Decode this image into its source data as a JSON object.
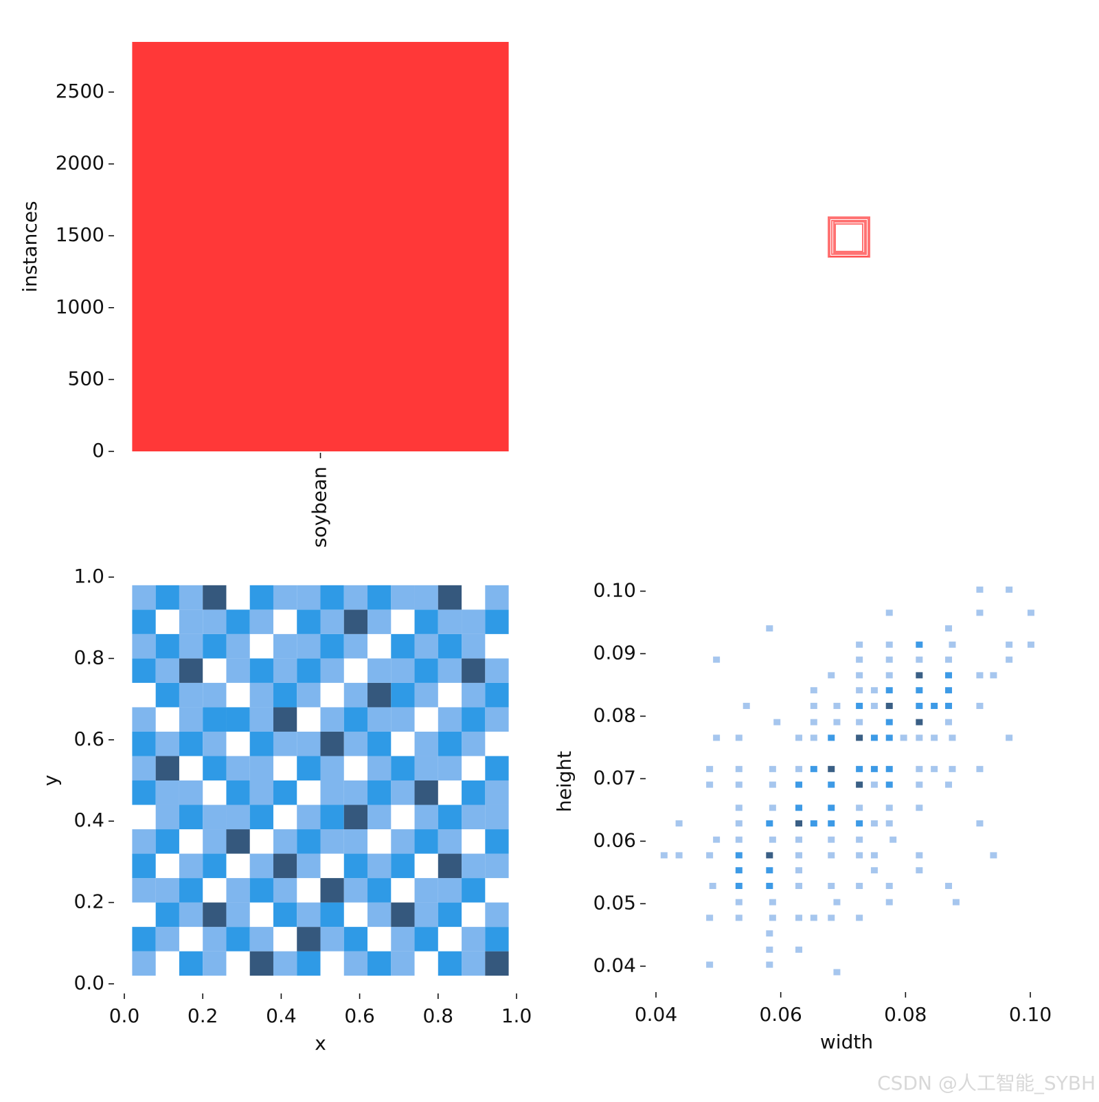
{
  "chart_data": [
    {
      "type": "bar",
      "ylabel": "instances",
      "categories": [
        "soybean"
      ],
      "values": [
        2849
      ],
      "color": "#ff3838",
      "ylim": [
        0,
        2849
      ],
      "yticks": [
        0,
        500,
        1000,
        1500,
        2000,
        2500
      ]
    },
    {
      "type": "hist2d",
      "xlabel": "x",
      "ylabel": "y",
      "xlim": [
        0,
        1
      ],
      "ylim": [
        0,
        1
      ],
      "xticks": [
        {
          "value": 0,
          "label": "0.0"
        },
        0.2,
        0.4,
        0.6,
        0.8,
        {
          "value": 1,
          "label": "1.0"
        }
      ],
      "yticks": [
        {
          "value": 0,
          "label": "0.0"
        },
        0.2,
        0.4,
        0.6,
        0.8,
        {
          "value": 1,
          "label": "1.0"
        }
      ],
      "colors": [
        "#7fb6ee",
        "#2f9ae6",
        "#35587d"
      ],
      "xbins": [
        0.02,
        0.08,
        0.14,
        0.2,
        0.26,
        0.32,
        0.38,
        0.44,
        0.5,
        0.56,
        0.62,
        0.68,
        0.74,
        0.8,
        0.86,
        0.92,
        0.98
      ],
      "ybins": [
        0.02,
        0.08,
        0.14,
        0.2,
        0.26,
        0.32,
        0.38,
        0.44,
        0.5,
        0.56,
        0.62,
        0.68,
        0.74,
        0.8,
        0.86,
        0.92,
        0.98
      ],
      "counts": [
        [
          1,
          0,
          2,
          1,
          0,
          3,
          1,
          2,
          0,
          1,
          2,
          1,
          0,
          2,
          1,
          3
        ],
        [
          2,
          1,
          0,
          1,
          2,
          1,
          0,
          3,
          1,
          2,
          0,
          1,
          2,
          0,
          1,
          2
        ],
        [
          0,
          2,
          1,
          3,
          1,
          0,
          2,
          1,
          2,
          0,
          1,
          3,
          1,
          2,
          0,
          1
        ],
        [
          1,
          1,
          2,
          0,
          1,
          2,
          1,
          0,
          3,
          1,
          2,
          0,
          1,
          1,
          2,
          0
        ],
        [
          2,
          0,
          1,
          2,
          0,
          1,
          3,
          1,
          0,
          2,
          1,
          2,
          0,
          3,
          1,
          1
        ],
        [
          1,
          2,
          0,
          1,
          3,
          0,
          1,
          2,
          1,
          1,
          0,
          1,
          2,
          1,
          0,
          2
        ],
        [
          0,
          1,
          2,
          1,
          1,
          2,
          0,
          1,
          2,
          3,
          1,
          0,
          1,
          2,
          1,
          1
        ],
        [
          2,
          1,
          1,
          0,
          2,
          1,
          2,
          0,
          1,
          1,
          2,
          1,
          3,
          0,
          2,
          1
        ],
        [
          1,
          3,
          0,
          2,
          1,
          1,
          0,
          2,
          1,
          0,
          1,
          2,
          1,
          1,
          0,
          2
        ],
        [
          2,
          1,
          2,
          1,
          0,
          2,
          1,
          1,
          3,
          1,
          2,
          0,
          1,
          2,
          1,
          0
        ],
        [
          1,
          0,
          1,
          2,
          2,
          1,
          3,
          0,
          1,
          2,
          1,
          1,
          0,
          1,
          2,
          1
        ],
        [
          0,
          2,
          1,
          1,
          0,
          1,
          2,
          1,
          0,
          1,
          3,
          2,
          1,
          0,
          1,
          2
        ],
        [
          2,
          1,
          3,
          0,
          1,
          2,
          1,
          2,
          1,
          0,
          1,
          1,
          2,
          1,
          3,
          1
        ],
        [
          1,
          2,
          1,
          2,
          1,
          0,
          1,
          1,
          2,
          1,
          0,
          2,
          1,
          2,
          1,
          0
        ],
        [
          2,
          0,
          1,
          1,
          2,
          1,
          0,
          2,
          1,
          3,
          1,
          0,
          2,
          1,
          1,
          2
        ],
        [
          1,
          2,
          1,
          3,
          0,
          2,
          1,
          1,
          2,
          1,
          2,
          1,
          1,
          3,
          0,
          1
        ]
      ]
    },
    {
      "type": "scatter",
      "xlabel": "width",
      "ylabel": "height",
      "xlim": [
        0.04,
        0.1011
      ],
      "ylim": [
        0.0374,
        0.1017
      ],
      "xticks": [
        0.04,
        0.06,
        0.08,
        {
          "value": 0.1,
          "label": "0.10"
        }
      ],
      "yticks": [
        0.04,
        0.05,
        0.06,
        0.07,
        0.08,
        0.09,
        {
          "value": 0.1,
          "label": "0.10"
        }
      ],
      "colors": [
        "#a6c6ee",
        "#3d9ae6",
        "#3a5f85"
      ],
      "x": [
        0.0919,
        0.0966,
        0.1001,
        0.0774,
        0.0919,
        0.0582,
        0.0869,
        0.0497,
        0.0726,
        0.0774,
        0.0822,
        0.0875,
        0.0966,
        0.1001,
        0.0726,
        0.0774,
        0.0822,
        0.0869,
        0.0966,
        0.0681,
        0.0726,
        0.0774,
        0.0822,
        0.0869,
        0.0919,
        0.0941,
        0.0653,
        0.0726,
        0.075,
        0.0774,
        0.0822,
        0.0869,
        0.0545,
        0.0653,
        0.069,
        0.0726,
        0.075,
        0.0774,
        0.0822,
        0.0846,
        0.0869,
        0.0919,
        0.0594,
        0.0653,
        0.069,
        0.0726,
        0.0774,
        0.0822,
        0.0869,
        0.0497,
        0.0533,
        0.0629,
        0.0653,
        0.0681,
        0.0726,
        0.075,
        0.0774,
        0.0797,
        0.0822,
        0.0846,
        0.0875,
        0.0966,
        0.0486,
        0.0533,
        0.0587,
        0.0629,
        0.0653,
        0.0681,
        0.0726,
        0.075,
        0.0774,
        0.0822,
        0.0846,
        0.0875,
        0.0919,
        0.0486,
        0.0533,
        0.0587,
        0.0629,
        0.0681,
        0.0726,
        0.075,
        0.0774,
        0.0822,
        0.0869,
        0.0533,
        0.0587,
        0.0629,
        0.0681,
        0.0726,
        0.0774,
        0.0822,
        0.0437,
        0.0533,
        0.0582,
        0.0629,
        0.0653,
        0.0681,
        0.0726,
        0.075,
        0.0774,
        0.0919,
        0.0497,
        0.0533,
        0.0587,
        0.0629,
        0.0681,
        0.0726,
        0.078,
        0.0413,
        0.0437,
        0.0486,
        0.0533,
        0.0582,
        0.0629,
        0.0681,
        0.0726,
        0.075,
        0.0822,
        0.0941,
        0.0533,
        0.0582,
        0.0629,
        0.075,
        0.0822,
        0.0533,
        0.0491,
        0.0582,
        0.0629,
        0.0681,
        0.0726,
        0.0774,
        0.0869,
        0.0533,
        0.0587,
        0.069,
        0.0774,
        0.0881,
        0.0486,
        0.0533,
        0.0587,
        0.0629,
        0.0653,
        0.0681,
        0.0726,
        0.0582,
        0.0582,
        0.0629,
        0.0486,
        0.0582,
        0.069
      ],
      "y": [
        0.1003,
        0.1003,
        0.0966,
        0.0966,
        0.0966,
        0.0941,
        0.0941,
        0.0891,
        0.0915,
        0.0915,
        0.0915,
        0.0915,
        0.0915,
        0.0915,
        0.0891,
        0.0891,
        0.0891,
        0.0891,
        0.0891,
        0.0866,
        0.0866,
        0.0866,
        0.0866,
        0.0866,
        0.0866,
        0.0866,
        0.0842,
        0.0842,
        0.0842,
        0.0842,
        0.0842,
        0.0842,
        0.0817,
        0.0817,
        0.0817,
        0.0817,
        0.0817,
        0.0817,
        0.0817,
        0.0817,
        0.0817,
        0.0817,
        0.0791,
        0.0791,
        0.0791,
        0.0791,
        0.0791,
        0.0791,
        0.0791,
        0.0766,
        0.0766,
        0.0766,
        0.0766,
        0.0766,
        0.0766,
        0.0766,
        0.0766,
        0.0766,
        0.0766,
        0.0766,
        0.0766,
        0.0766,
        0.0716,
        0.0716,
        0.0716,
        0.0716,
        0.0716,
        0.0716,
        0.0716,
        0.0716,
        0.0716,
        0.0716,
        0.0716,
        0.0716,
        0.0716,
        0.0691,
        0.0691,
        0.0691,
        0.0691,
        0.0691,
        0.0691,
        0.0691,
        0.0691,
        0.0691,
        0.0691,
        0.0654,
        0.0654,
        0.0654,
        0.0654,
        0.0654,
        0.0654,
        0.0654,
        0.0629,
        0.0629,
        0.0629,
        0.0629,
        0.0629,
        0.0629,
        0.0629,
        0.0629,
        0.0629,
        0.0629,
        0.0603,
        0.0603,
        0.0603,
        0.0603,
        0.0603,
        0.0603,
        0.0603,
        0.0578,
        0.0578,
        0.0578,
        0.0578,
        0.0578,
        0.0578,
        0.0578,
        0.0578,
        0.0578,
        0.0578,
        0.0578,
        0.0554,
        0.0554,
        0.0554,
        0.0554,
        0.0554,
        0.0529,
        0.0529,
        0.0529,
        0.0529,
        0.0529,
        0.0529,
        0.0529,
        0.0529,
        0.0503,
        0.0503,
        0.0503,
        0.0503,
        0.0503,
        0.0478,
        0.0478,
        0.0478,
        0.0478,
        0.0478,
        0.0478,
        0.0478,
        0.0453,
        0.0427,
        0.0427,
        0.0403,
        0.0403,
        0.0391
      ],
      "counts": [
        1,
        1,
        1,
        1,
        1,
        1,
        1,
        1,
        1,
        1,
        2,
        1,
        1,
        1,
        1,
        1,
        1,
        1,
        1,
        1,
        1,
        1,
        3,
        2,
        1,
        1,
        1,
        1,
        1,
        2,
        2,
        2,
        1,
        1,
        1,
        2,
        1,
        3,
        2,
        2,
        2,
        1,
        1,
        1,
        1,
        1,
        2,
        3,
        1,
        1,
        1,
        1,
        1,
        2,
        3,
        2,
        2,
        1,
        1,
        1,
        1,
        1,
        1,
        1,
        1,
        1,
        2,
        3,
        2,
        2,
        2,
        1,
        1,
        1,
        1,
        1,
        1,
        1,
        2,
        2,
        3,
        1,
        2,
        1,
        1,
        1,
        1,
        2,
        2,
        1,
        1,
        1,
        1,
        1,
        2,
        3,
        2,
        2,
        2,
        1,
        1,
        1,
        1,
        1,
        1,
        1,
        1,
        1,
        1,
        1,
        1,
        1,
        2,
        3,
        1,
        1,
        1,
        1,
        1,
        1,
        2,
        2,
        1,
        1,
        1,
        2,
        1,
        2,
        1,
        1,
        1,
        1,
        1,
        1,
        1,
        1,
        1,
        1,
        1,
        1,
        1,
        1,
        1,
        1,
        1,
        1,
        1,
        1,
        1,
        1,
        1
      ]
    }
  ],
  "watermark": "CSDN @人工智能_SYBH"
}
